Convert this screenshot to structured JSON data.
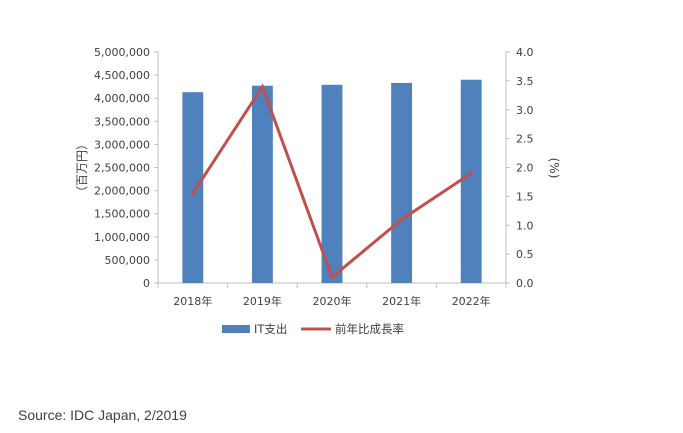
{
  "chart_data": {
    "type": "bar",
    "categories": [
      "2018年",
      "2019年",
      "2020年",
      "2021年",
      "2022年"
    ],
    "series": [
      {
        "name": "IT支出",
        "type": "bar",
        "axis": "left",
        "values": [
          4130000,
          4270000,
          4290000,
          4330000,
          4400000
        ]
      },
      {
        "name": "前年比成長率",
        "type": "line",
        "axis": "right",
        "values": [
          1.55,
          3.4,
          0.1,
          1.1,
          1.9
        ]
      }
    ],
    "ylabel": "（百万円）",
    "y2label": "(%)",
    "ylim": [
      0,
      5000000
    ],
    "y2lim": [
      0,
      4.0
    ],
    "yticks": [
      "0",
      "500,000",
      "1,000,000",
      "1,500,000",
      "2,000,000",
      "2,500,000",
      "3,000,000",
      "3,500,000",
      "4,000,000",
      "4,500,000",
      "5,000,000"
    ],
    "y2ticks": [
      "0.0",
      "0.5",
      "1.0",
      "1.5",
      "2.0",
      "2.5",
      "3.0",
      "3.5",
      "4.0"
    ],
    "grid": false,
    "legend": "bottom",
    "colors": {
      "bar": "#4F81BD",
      "line": "#C0504D",
      "axis": "#BFBFBF"
    }
  },
  "source": "Source: IDC Japan, 2/2019"
}
